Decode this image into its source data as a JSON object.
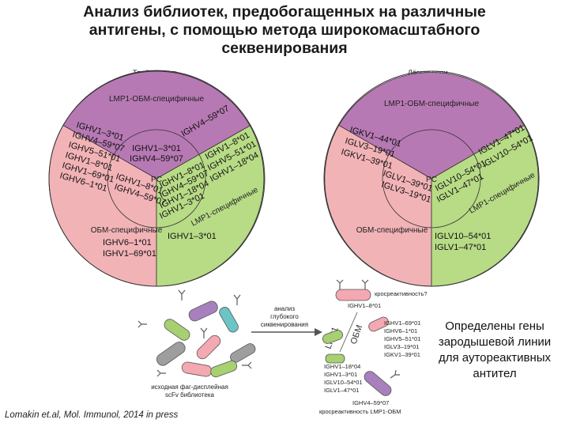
{
  "title_lines": [
    "Анализ библиотек, предобогащенных на различные",
    "антигены, с помощью метода широкомасштабного",
    "секвенирования"
  ],
  "left_pie": {
    "caption": "Тяжёлая цепь",
    "top_label": "LMP1-ОБМ-специфичные",
    "center_label": "PC",
    "left_label": "ОБМ-специфичные",
    "right_arc_label": "LMP1-специфичные",
    "genes": {
      "obm_rim": [
        "IGHV1–3*01",
        "IGHV4–59*07",
        "IGHV5–51*01",
        "IGHV1–8*01",
        "IGHV1–69*01",
        "IGHV6–1*01"
      ],
      "obm_inner": [
        "IGHV1–8*01",
        "IGHV4–59*07"
      ],
      "lmp1_obm": "IGHV4–59*07",
      "center_top": [
        "IGHV1–3*01",
        "IGHV4–59*07"
      ],
      "lmp1_rim": [
        "IGHV1–8*01",
        "IGHV5–51*01",
        "IGHV1–18*04"
      ],
      "lmp1_inner": [
        "IGHV1–8*01",
        "IGHV4–59*07",
        "IGHV1–18*04",
        "IGHV1–3*01"
      ],
      "obm_only": [
        "IGHV6–1*01",
        "IGHV1–69*01"
      ],
      "lmp1_only": "IGHV1–3*01"
    }
  },
  "right_pie": {
    "caption": "Лёгкие цепи",
    "top_label": "LMP1-ОБМ-специфичные",
    "center_label": "PC",
    "left_label": "ОБМ-специфичные",
    "right_arc_label": "LMP1-специфичные",
    "genes": {
      "obm_rim": [
        "IGKV1–44*01",
        "IGLV3–19*01",
        "IGKV1–39*01"
      ],
      "obm_inner": [
        "IGLV1–39*01",
        "IGLV3–19*01"
      ],
      "lmp1_rim": [
        "IGLV1–47*01",
        "IGLV10–54*01"
      ],
      "lmp1_inner": [
        "IGLV10–54*01",
        "IGLV1–47*01"
      ],
      "lmp1_only": [
        "IGLV10–54*01",
        "IGLV1–47*01"
      ]
    }
  },
  "schematic": {
    "library_label": [
      "исходная фаг-дисплейная",
      "scFv библиотека"
    ],
    "arrow_label": [
      "анализ",
      "глубокого",
      "сиквенирования"
    ],
    "lmp1_label": "LMP1",
    "obm_label": "ОБМ",
    "cross_top": "кросреактивность?",
    "ighv_top": "IGHV1–8*01",
    "lmp1_list": [
      "IGHV1–18*04",
      "IGHV1–3*01",
      "IGLV10–54*01",
      "IGLV1–47*01"
    ],
    "obm_list": [
      "IGHV1–69*01",
      "IGHV6–1*01",
      "IGHV5–51*01",
      "IGLV3–19*01",
      "IGKV1–39*01"
    ],
    "bottom_gene": "IGHV4–59*07",
    "cross_bottom": "кросреактивность LMP1-ОБМ"
  },
  "note_lines": [
    "Определены гены",
    "зародышевой линии",
    "для аутореактивных",
    "антител"
  ],
  "citation": "Lomakin et.al, Mol. Immunol, 2014 in press",
  "colors": {
    "purple": "#b779b4",
    "pink": "#f2b3b7",
    "green": "#b8db86",
    "outline": "#333333",
    "scfv_purple": "#a880bd",
    "scfv_pink": "#f4a8b1",
    "scfv_green": "#a7d071",
    "scfv_gray": "#9e9e9e",
    "scfv_teal": "#6cc5c4"
  }
}
